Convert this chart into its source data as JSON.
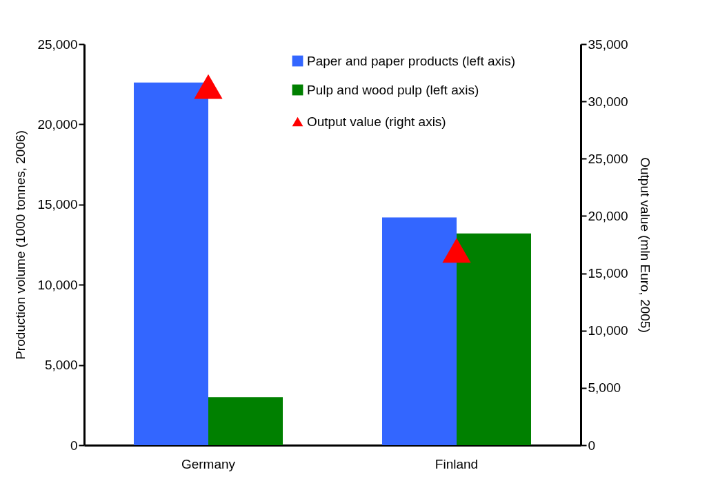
{
  "chart_data": {
    "type": "bar",
    "categories": [
      "Germany",
      "Finland"
    ],
    "series": [
      {
        "name": "Paper and paper products (left axis)",
        "color": "#3366ff",
        "values": [
          22600,
          14200
        ]
      },
      {
        "name": "Pulp and wood pulp  (left axis)",
        "color": "#008000",
        "values": [
          3000,
          13200
        ]
      },
      {
        "name": "Output value (right axis)",
        "type": "scatter",
        "axis": "y2",
        "marker": "triangle",
        "color": "#ff0000",
        "values": [
          31300,
          17000
        ]
      }
    ],
    "ylabel": "Production volume (1000 tonnes, 2006)",
    "y2label": "Output value (mln Euro, 2005)",
    "ylim": [
      0,
      25000
    ],
    "yticks": [
      0,
      {
        "value": 5000,
        "label": "5,000"
      },
      {
        "value": 10000,
        "label": "10,000"
      },
      {
        "value": 15000,
        "label": "15,000"
      },
      {
        "value": 20000,
        "label": "20,000"
      },
      {
        "value": 25000,
        "label": "25,000"
      }
    ],
    "y2lim": [
      0,
      35000
    ],
    "y2ticks": [
      0,
      {
        "value": 5000,
        "label": "5,000"
      },
      {
        "value": 10000,
        "label": "10,000"
      },
      {
        "value": 15000,
        "label": "15,000"
      },
      {
        "value": 20000,
        "label": "20,000"
      },
      {
        "value": 25000,
        "label": "25,000"
      },
      {
        "value": 30000,
        "label": "30,000"
      },
      {
        "value": 35000,
        "label": "35,000"
      }
    ],
    "grid": false,
    "legend": "top right"
  }
}
